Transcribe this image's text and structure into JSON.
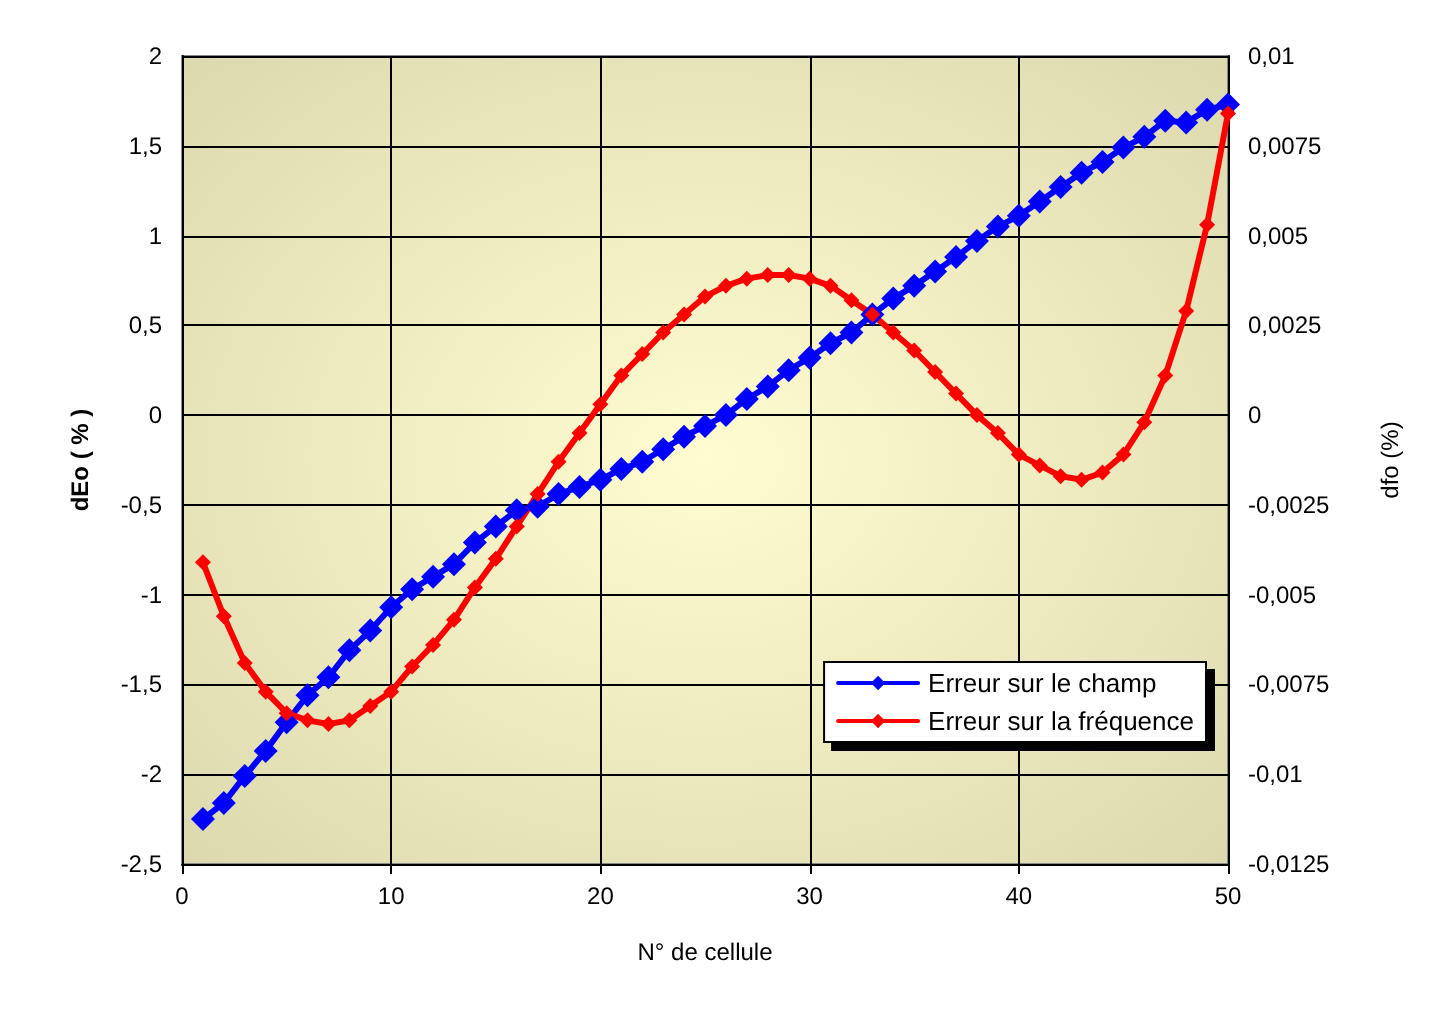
{
  "chart_data": {
    "type": "line",
    "xlabel": "N° de cellule",
    "ylabel": "dEo ( % )",
    "y2label": "dfo (%)",
    "x": [
      1,
      2,
      3,
      4,
      5,
      6,
      7,
      8,
      9,
      10,
      11,
      12,
      13,
      14,
      15,
      16,
      17,
      18,
      19,
      20,
      21,
      22,
      23,
      24,
      25,
      26,
      27,
      28,
      29,
      30,
      31,
      32,
      33,
      34,
      35,
      36,
      37,
      38,
      39,
      40,
      41,
      42,
      43,
      44,
      45,
      46,
      47,
      48,
      49,
      50
    ],
    "series": [
      {
        "name": "Erreur sur le champ",
        "color": "#0000ff",
        "values": [
          -2.25,
          -2.16,
          -2.01,
          -1.87,
          -1.71,
          -1.56,
          -1.46,
          -1.31,
          -1.2,
          -1.07,
          -0.97,
          -0.9,
          -0.83,
          -0.71,
          -0.62,
          -0.53,
          -0.51,
          -0.44,
          -0.4,
          -0.36,
          -0.3,
          -0.26,
          -0.19,
          -0.12,
          -0.06,
          0.0,
          0.09,
          0.16,
          0.25,
          0.32,
          0.4,
          0.46,
          0.56,
          0.65,
          0.72,
          0.8,
          0.88,
          0.97,
          1.05,
          1.11,
          1.19,
          1.27,
          1.35,
          1.41,
          1.49,
          1.55,
          1.64,
          1.63,
          1.7,
          1.73
        ]
      },
      {
        "name": "Erreur sur la fréquence",
        "color": "#ff0000",
        "axis": "y2",
        "values": [
          -0.0041,
          -0.0056,
          -0.0069,
          -0.0077,
          -0.0083,
          -0.0085,
          -0.0086,
          -0.0085,
          -0.0081,
          -0.0077,
          -0.007,
          -0.0064,
          -0.0057,
          -0.0048,
          -0.004,
          -0.0031,
          -0.0022,
          -0.0013,
          -0.0005,
          0.0003,
          0.0011,
          0.0017,
          0.0023,
          0.0028,
          0.0033,
          0.0036,
          0.0038,
          0.0039,
          0.0039,
          0.0038,
          0.0036,
          0.0032,
          0.0028,
          0.0023,
          0.0018,
          0.0012,
          0.0006,
          0.0,
          -0.0005,
          -0.0011,
          -0.0014,
          -0.0017,
          -0.0018,
          -0.0016,
          -0.0011,
          -0.0002,
          0.0011,
          0.0029,
          0.0053,
          0.0084
        ]
      }
    ],
    "xlim": [
      0,
      50
    ],
    "xticks": [
      0,
      10,
      20,
      30,
      40,
      50
    ],
    "ylim": [
      -2.5,
      2
    ],
    "yticks": [
      {
        "value": -2.5,
        "label": "-2,5"
      },
      -2,
      {
        "value": -1.5,
        "label": "-1,5"
      },
      -1,
      {
        "value": -0.5,
        "label": "-0,5"
      },
      0,
      {
        "value": 0.5,
        "label": "0,5"
      },
      1,
      {
        "value": 1.5,
        "label": "1,5"
      },
      2
    ],
    "y2lim": [
      -0.0125,
      0.01
    ],
    "y2ticks": [
      {
        "value": -0.0125,
        "label": "-0,0125"
      },
      {
        "value": -0.01,
        "label": "-0,01"
      },
      {
        "value": -0.0075,
        "label": "-0,0075"
      },
      {
        "value": -0.005,
        "label": "-0,005"
      },
      {
        "value": -0.0025,
        "label": "-0,0025"
      },
      0,
      {
        "value": 0.0025,
        "label": "0,0025"
      },
      {
        "value": 0.005,
        "label": "0,005"
      },
      {
        "value": 0.0075,
        "label": "0,0075"
      },
      {
        "value": 0.01,
        "label": "0,01"
      }
    ],
    "grid": true,
    "legend": "bottom right",
    "marker": "diamond",
    "line_style": "solid"
  }
}
